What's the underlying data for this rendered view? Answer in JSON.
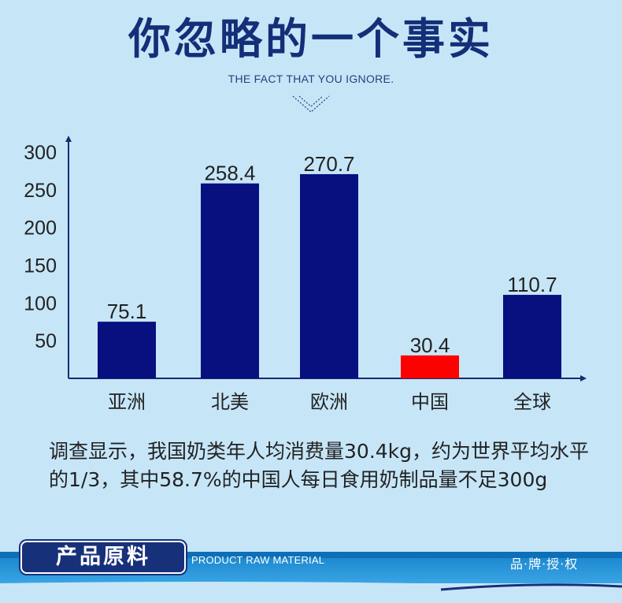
{
  "header": {
    "title": "你忽略的一个事实",
    "subtitle": "THE FACT THAT YOU IGNORE."
  },
  "chart_data": {
    "type": "bar",
    "categories": [
      "亚洲",
      "北美",
      "欧洲",
      "中国",
      "全球"
    ],
    "values": [
      75.1,
      258.4,
      270.7,
      30.4,
      110.7
    ],
    "value_labels": [
      "75.1",
      "258.4",
      "270.7",
      "30.4",
      "110.7"
    ],
    "yticks": [
      50,
      100,
      150,
      200,
      250,
      300
    ],
    "ytick_labels": [
      "50",
      "100",
      "150",
      "200",
      "250",
      "300"
    ],
    "ylim": [
      0,
      320
    ],
    "grid": false,
    "bar_color": "#08107f",
    "highlight_color": "#ff0000",
    "highlight_index": 3
  },
  "description": "调查显示，我国奶类年人均消费量30.4kg，约为世界平均水平的1/3，其中58.7%的中国人每日食用奶制品量不足300g",
  "footer": {
    "section_title": "产品原料",
    "section_subtitle": "PRODUCT RAW MATERIAL",
    "brand_text": "品·牌·授·权"
  },
  "colors": {
    "background": "#c6e6f8",
    "title": "#142f78",
    "axis": "#1a2a6e",
    "band": "#1d89cf"
  }
}
